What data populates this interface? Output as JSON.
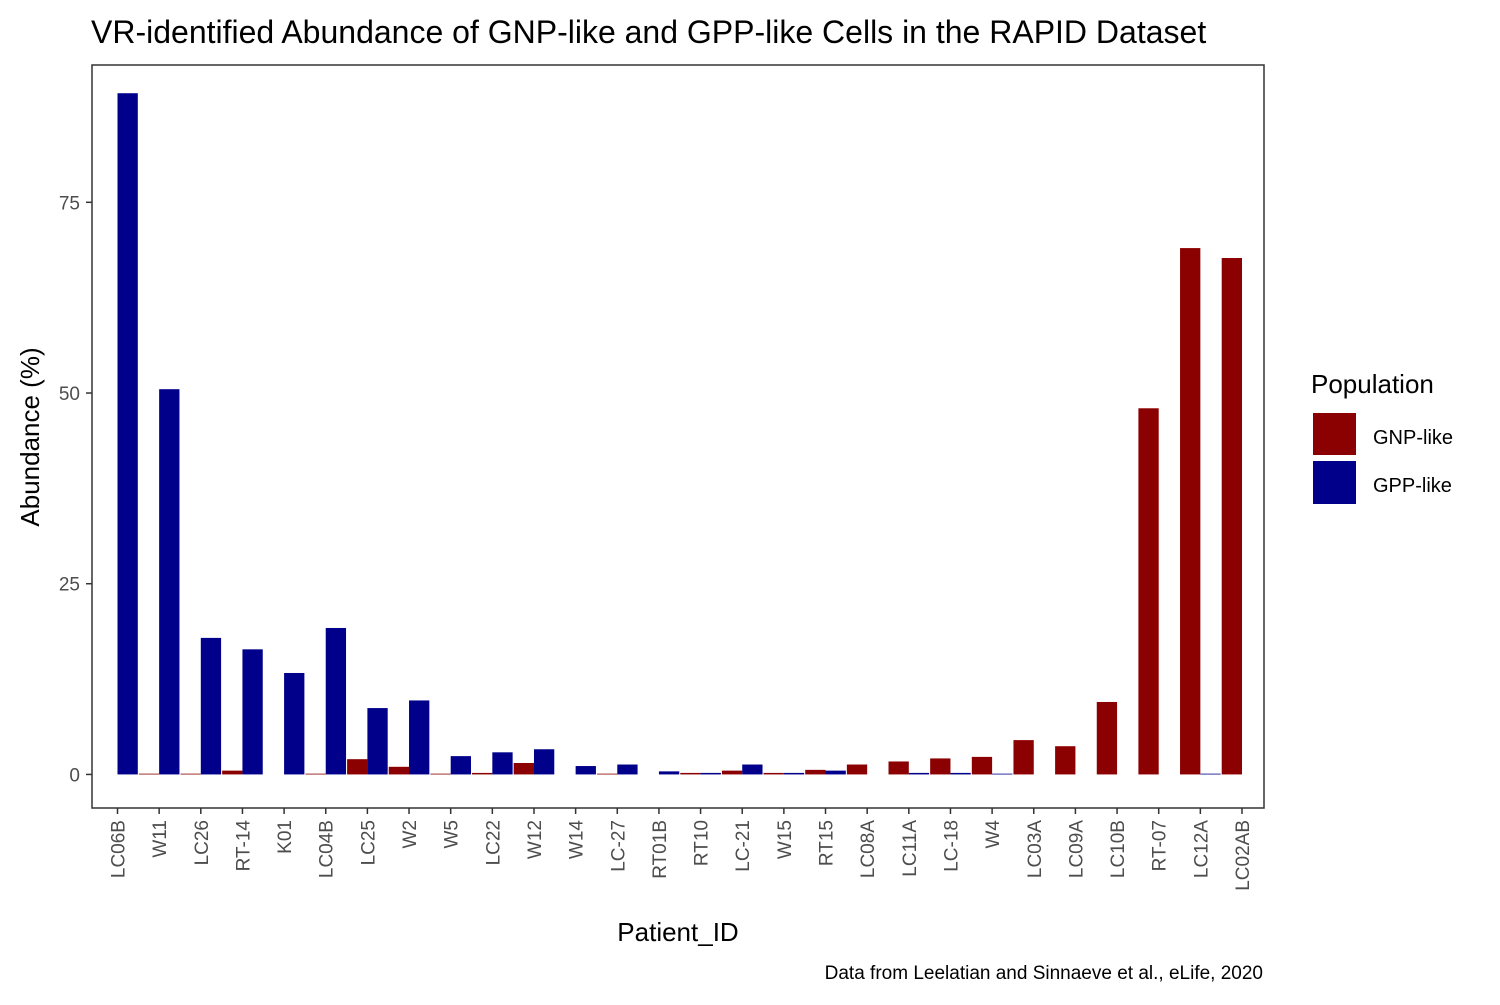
{
  "chart_data": {
    "type": "bar",
    "title": "VR-identified Abundance of GNP-like and GPP-like Cells in the RAPID Dataset",
    "xlabel": "Patient_ID",
    "ylabel": "Abundance (%)",
    "caption": "Data from Leelatian and Sinnaeve et al., eLife, 2020",
    "ylim": [
      -4.4,
      93.0
    ],
    "yticks": [
      0,
      25,
      50,
      75
    ],
    "grid": false,
    "legend_position": "right",
    "legend_title": "Population",
    "categories": [
      "LC06B",
      "W11",
      "LC26",
      "RT-14",
      "K01",
      "LC04B",
      "LC25",
      "W2",
      "W5",
      "LC22",
      "W12",
      "W14",
      "LC-27",
      "RT01B",
      "RT10",
      "LC-21",
      "W15",
      "RT15",
      "LC08A",
      "LC11A",
      "LC-18",
      "W4",
      "LC03A",
      "LC09A",
      "LC10B",
      "RT-07",
      "LC12A",
      "LC02AB"
    ],
    "series": [
      {
        "name": "GNP-like",
        "color": "#8B0000",
        "values": [
          null,
          0.1,
          0.1,
          0.5,
          null,
          0.1,
          2.0,
          1.0,
          0.1,
          0.2,
          1.5,
          null,
          0.1,
          null,
          0.2,
          0.5,
          0.2,
          0.6,
          1.3,
          1.7,
          2.1,
          2.3,
          4.5,
          3.7,
          9.5,
          48.0,
          69.0,
          67.7
        ]
      },
      {
        "name": "GPP-like",
        "color": "#00008B",
        "values": [
          89.3,
          50.5,
          17.9,
          16.4,
          13.3,
          19.2,
          8.7,
          9.7,
          2.4,
          2.9,
          3.3,
          1.1,
          1.3,
          0.4,
          0.2,
          1.3,
          0.2,
          0.5,
          null,
          0.2,
          0.2,
          0.1,
          null,
          null,
          null,
          null,
          0.1,
          null
        ]
      }
    ]
  }
}
